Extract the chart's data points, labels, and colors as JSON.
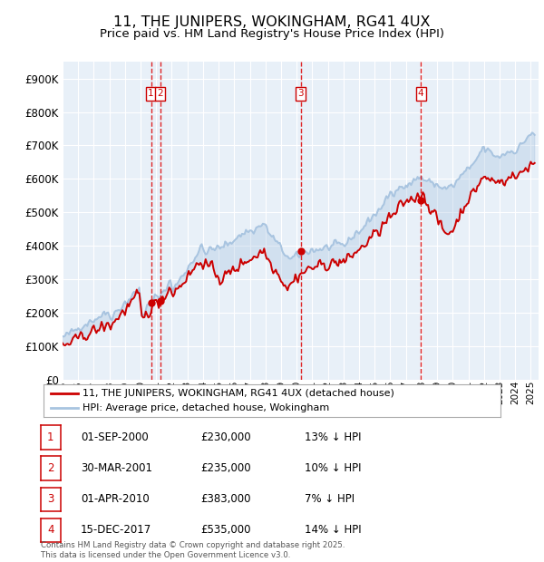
{
  "title": "11, THE JUNIPERS, WOKINGHAM, RG41 4UX",
  "subtitle": "Price paid vs. HM Land Registry's House Price Index (HPI)",
  "legend_line1": "11, THE JUNIPERS, WOKINGHAM, RG41 4UX (detached house)",
  "legend_line2": "HPI: Average price, detached house, Wokingham",
  "footer": "Contains HM Land Registry data © Crown copyright and database right 2025.\nThis data is licensed under the Open Government Licence v3.0.",
  "ylim": [
    0,
    950000
  ],
  "yticks": [
    0,
    100000,
    200000,
    300000,
    400000,
    500000,
    600000,
    700000,
    800000,
    900000
  ],
  "ytick_labels": [
    "£0",
    "£100K",
    "£200K",
    "£300K",
    "£400K",
    "£500K",
    "£600K",
    "£700K",
    "£800K",
    "£900K"
  ],
  "sales": [
    {
      "num": 1,
      "date_str": "01-SEP-2000",
      "price": 230000,
      "pct": "13%",
      "sx": 2000.667
    },
    {
      "num": 2,
      "date_str": "30-MAR-2001",
      "price": 235000,
      "pct": "10%",
      "sx": 2001.25
    },
    {
      "num": 3,
      "date_str": "01-APR-2010",
      "price": 383000,
      "pct": "7%",
      "sx": 2010.25
    },
    {
      "num": 4,
      "date_str": "15-DEC-2017",
      "price": 535000,
      "pct": "14%",
      "sx": 2017.958
    }
  ],
  "hpi_color": "#a8c4e0",
  "price_color": "#cc0000",
  "vline_color": "#dd0000",
  "box_color": "#cc0000",
  "plot_bg": "#e8f0f8",
  "grid_color": "#ffffff",
  "xlim_start": 1995.0,
  "xlim_end": 2025.5
}
